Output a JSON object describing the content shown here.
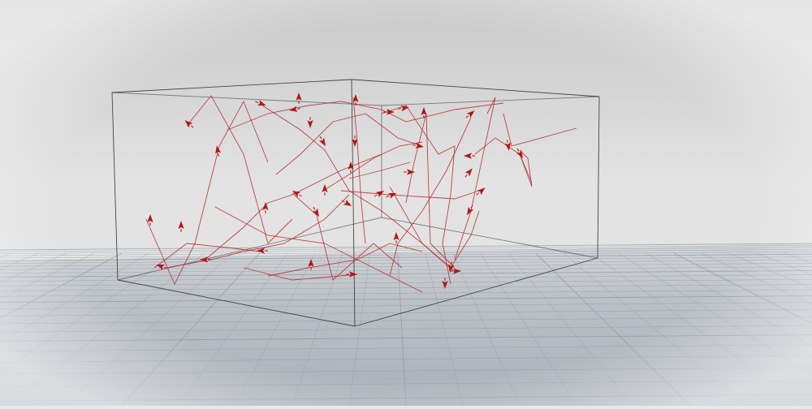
{
  "scene": {
    "background_top": "#c9c9c9",
    "background_mid": "#e0e0e0",
    "floor_color": "#b4b9c0",
    "floor_grid_color": "#8e969f",
    "box_edge_color": "#2c2c2c",
    "path_color": "#b52a2a",
    "arrow_color": "#b01818"
  }
}
